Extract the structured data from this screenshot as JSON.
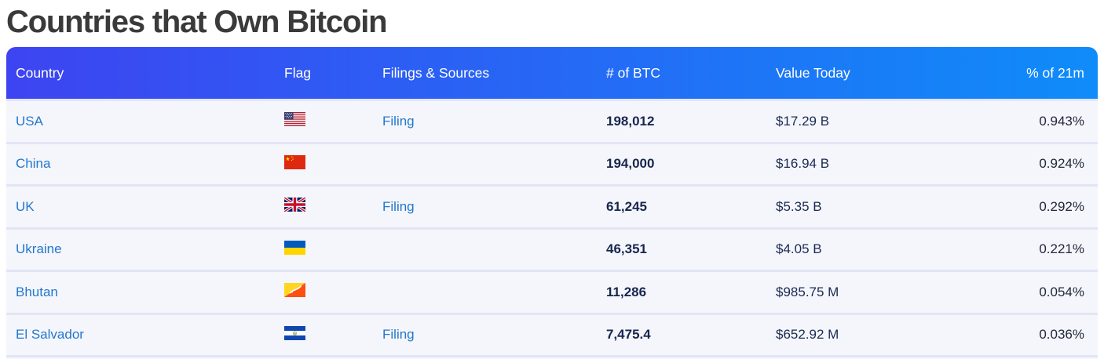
{
  "title": "Countries that Own Bitcoin",
  "table": {
    "headers": [
      "Country",
      "Flag",
      "Filings & Sources",
      "# of BTC",
      "Value Today",
      "% of 21m"
    ],
    "rows": [
      {
        "country": "USA",
        "flag": "us",
        "filing": "Filing",
        "btc": "198,012",
        "value": "$17.29 B",
        "pct": "0.943%"
      },
      {
        "country": "China",
        "flag": "cn",
        "filing": "",
        "btc": "194,000",
        "value": "$16.94 B",
        "pct": "0.924%"
      },
      {
        "country": "UK",
        "flag": "gb",
        "filing": "Filing",
        "btc": "61,245",
        "value": "$5.35 B",
        "pct": "0.292%"
      },
      {
        "country": "Ukraine",
        "flag": "ua",
        "filing": "",
        "btc": "46,351",
        "value": "$4.05 B",
        "pct": "0.221%"
      },
      {
        "country": "Bhutan",
        "flag": "bt",
        "filing": "",
        "btc": "11,286",
        "value": "$985.75 M",
        "pct": "0.054%"
      },
      {
        "country": "El Salvador",
        "flag": "sv",
        "filing": "Filing",
        "btc": "7,475.4",
        "value": "$652.92 M",
        "pct": "0.036%"
      }
    ]
  },
  "colors": {
    "header_gradient_start": "#3d44f1",
    "header_gradient_end": "#0f8cf9",
    "header_text": "#ffffff",
    "link": "#2478cb",
    "row_bg": "#f4f6fc",
    "separator": "#e2e5f6",
    "btc_text": "#17264d",
    "value_text": "#1b2950",
    "pct_text": "#23283a",
    "title": "#3a3a3a"
  }
}
